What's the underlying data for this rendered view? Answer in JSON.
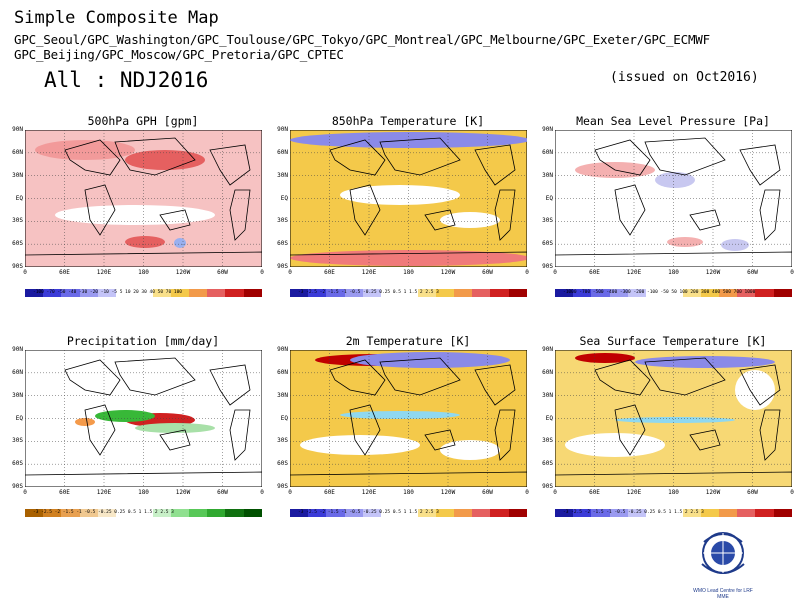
{
  "title": "Simple Composite Map",
  "centers_line1": "GPC_Seoul/GPC_Washington/GPC_Toulouse/GPC_Tokyo/GPC_Montreal/GPC_Melbourne/GPC_Exeter/GPC_ECMWF",
  "centers_line2": "GPC_Beijing/GPC_Moscow/GPC_Pretoria/GPC_CPTEC",
  "season": "All : NDJ2016",
  "issued": "(issued on Oct2016)",
  "lat_labels": [
    "90N",
    "60N",
    "30N",
    "EQ",
    "30S",
    "60S",
    "90S"
  ],
  "lon_labels": [
    "0",
    "60E",
    "120E",
    "180",
    "120W",
    "60W",
    "0"
  ],
  "panels": [
    {
      "title": "500hPa GPH [gpm]",
      "scale": "-100 -70 -50 -40 -30 -20 -10 -5 5 10 20 30 40 50 70 100",
      "bg": "#f6c2c2"
    },
    {
      "title": "850hPa Temperature [K]",
      "scale": "-3 -2.5 -2 -1.5 -1 -0.5 -0.25 0.25 0.5 1 1.5 2 2.5 3",
      "bg": "#f4c94a"
    },
    {
      "title": "Mean Sea Level Pressure [Pa]",
      "scale": "-1000 -700 -500 -400 -300 -200 -100 -50 50 100 200 300 400 500 700 1000",
      "bg": "#ffffff"
    },
    {
      "title": "Precipitation [mm/day]",
      "scale": "-3 -2.5 -2 -1.5 -1 -0.5 -0.25 0.25 0.5 1 1.5 2 2.5 3",
      "bg": "#ffffff"
    },
    {
      "title": "2m Temperature [K]",
      "scale": "-3 -2.5 -2 -1.5 -1 -0.5 -0.25 0.25 0.5 1 1.5 2 2.5 3",
      "bg": "#f4c94a"
    },
    {
      "title": "Sea Surface Temperature [K]",
      "scale": "-3 -2.5 -2 -1.5 -1 -0.5 -0.25 0.25 0.5 1 1.5 2 2.5 3",
      "bg": "#f7d874"
    }
  ],
  "logo_caption": "WMO Lead Centre for LRF MME",
  "colors": {
    "warm": "#e03030",
    "cold": "#3a3ad0",
    "yellow": "#f4c94a",
    "green": "#38b838"
  }
}
